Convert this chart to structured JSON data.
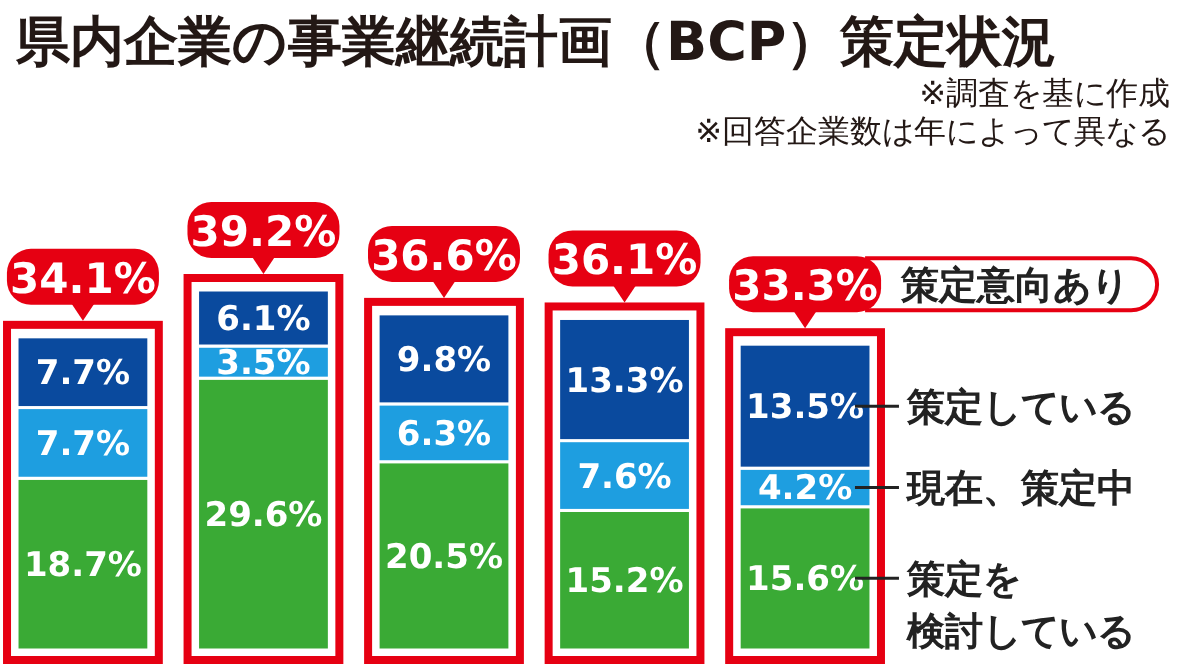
{
  "chart_data": {
    "type": "bar",
    "stacked": true,
    "title": "県内企業の事業継続計画（BCP）策定状況",
    "annotations": [
      "※調査を基に作成",
      "※回答企業数は年によって異なる",
      "策定意向あり"
    ],
    "categories": [
      null,
      null,
      null,
      null,
      null
    ],
    "series": [
      {
        "name": "策定を検討している",
        "color": "#3aaa35",
        "values": [
          18.7,
          29.6,
          20.5,
          15.2,
          15.6
        ],
        "value_labels": [
          "18.7%",
          "29.6%",
          "20.5%",
          "15.2%",
          "15.6%"
        ]
      },
      {
        "name": "現在、策定中",
        "color": "#1e9ee0",
        "values": [
          7.7,
          3.5,
          6.3,
          7.6,
          4.2
        ],
        "value_labels": [
          "7.7%",
          "3.5%",
          "6.3%",
          "7.6%",
          "4.2%"
        ]
      },
      {
        "name": "策定している",
        "color": "#0a4a9e",
        "values": [
          7.7,
          6.1,
          9.8,
          13.3,
          13.5
        ],
        "value_labels": [
          "7.7%",
          "6.1%",
          "9.8%",
          "13.3%",
          "13.5%"
        ]
      }
    ],
    "totals": [
      "34.1%",
      "39.2%",
      "36.6%",
      "36.1%",
      "33.3%"
    ],
    "legend": "right"
  }
}
